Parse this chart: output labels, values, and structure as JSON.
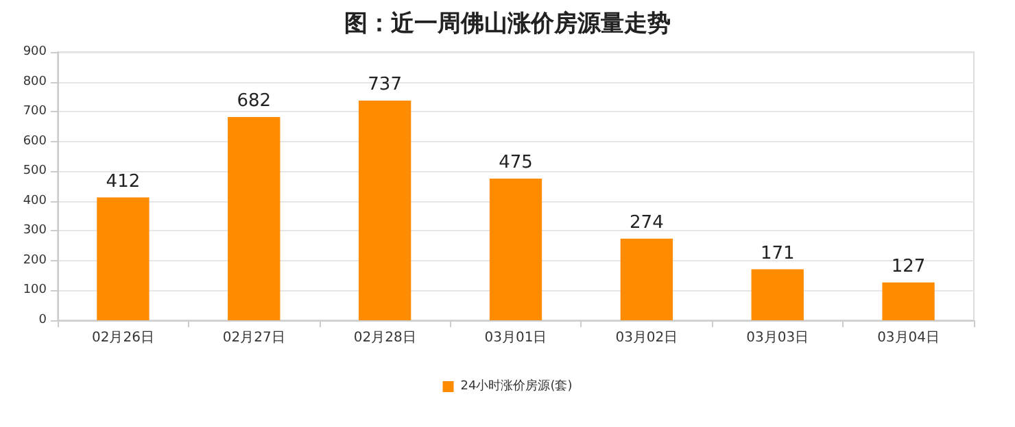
{
  "chart_data": {
    "type": "bar",
    "title": "图：近一周佛山涨价房源量走势",
    "categories": [
      "02月26日",
      "02月27日",
      "02月28日",
      "03月01日",
      "03月02日",
      "03月03日",
      "03月04日"
    ],
    "series": [
      {
        "name": "24小时涨价房源(套)",
        "color": "#ff8c00",
        "values": [
          412,
          682,
          737,
          475,
          274,
          171,
          127
        ]
      }
    ],
    "ylim": [
      0,
      900
    ],
    "yticks": [
      0,
      100,
      200,
      300,
      400,
      500,
      600,
      700,
      800,
      900
    ],
    "grid": "y",
    "legend": "bottom",
    "data_labels": true
  }
}
